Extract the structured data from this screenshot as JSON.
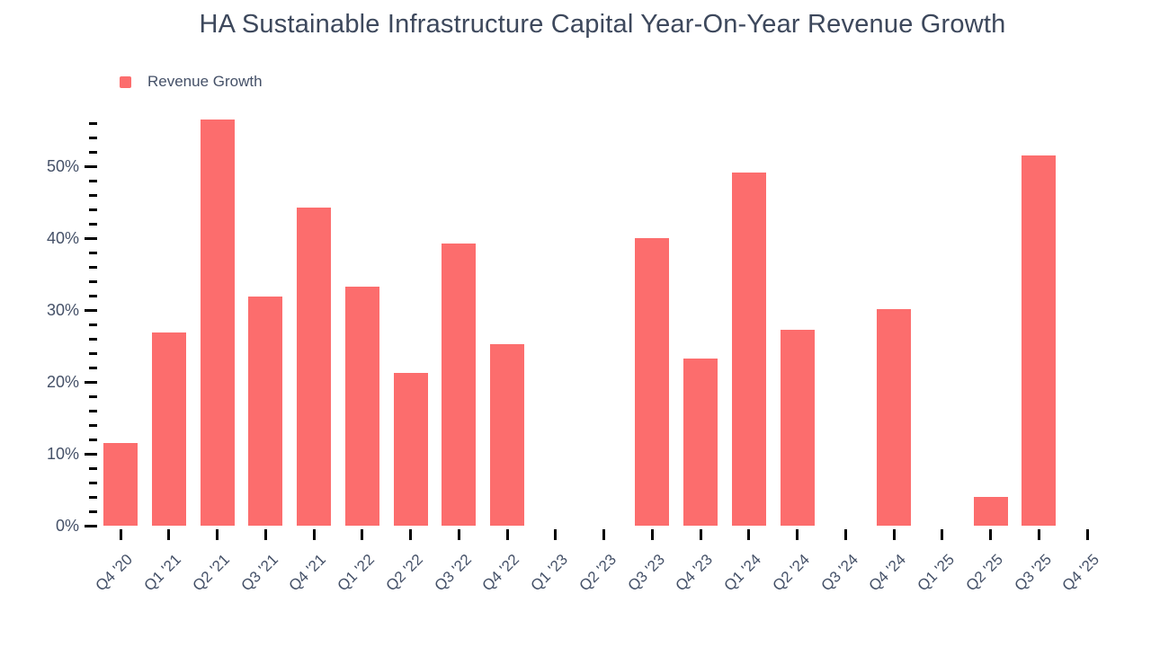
{
  "title": "HA Sustainable Infrastructure Capital Year-On-Year Revenue Growth",
  "legend": {
    "label": "Revenue Growth",
    "color": "#fc6d6d"
  },
  "colors": {
    "bar": "#fc6d6d",
    "title_text": "#3d485c",
    "axis_text": "#455168",
    "tick": "#000000",
    "background": "#ffffff"
  },
  "chart_data": {
    "type": "bar",
    "title": "HA Sustainable Infrastructure Capital Year-On-Year Revenue Growth",
    "xlabel": "",
    "ylabel": "",
    "legend_entries": [
      "Revenue Growth"
    ],
    "legend_position": "top-left",
    "grid": false,
    "categories": [
      "Q4 '20",
      "Q1 '21",
      "Q2 '21",
      "Q3 '21",
      "Q4 '21",
      "Q1 '22",
      "Q2 '22",
      "Q3 '22",
      "Q4 '22",
      "Q1 '23",
      "Q2 '23",
      "Q3 '23",
      "Q4 '23",
      "Q1 '24",
      "Q2 '24",
      "Q3 '24",
      "Q4 '24",
      "Q1 '25",
      "Q2 '25",
      "Q3 '25",
      "Q4 '25"
    ],
    "values": [
      11.5,
      26.9,
      56.5,
      31.9,
      44.3,
      33.3,
      21.3,
      39.2,
      25.3,
      null,
      null,
      40.0,
      23.2,
      49.1,
      27.3,
      null,
      30.1,
      null,
      4.0,
      51.5,
      null
    ],
    "unit": "%",
    "y_axis": {
      "min": 0,
      "max": 56,
      "minor_step": 2,
      "label_step": 10,
      "unit": "%",
      "tick_labels": [
        "0%",
        "10%",
        "20%",
        "30%",
        "40%",
        "50%"
      ]
    }
  }
}
